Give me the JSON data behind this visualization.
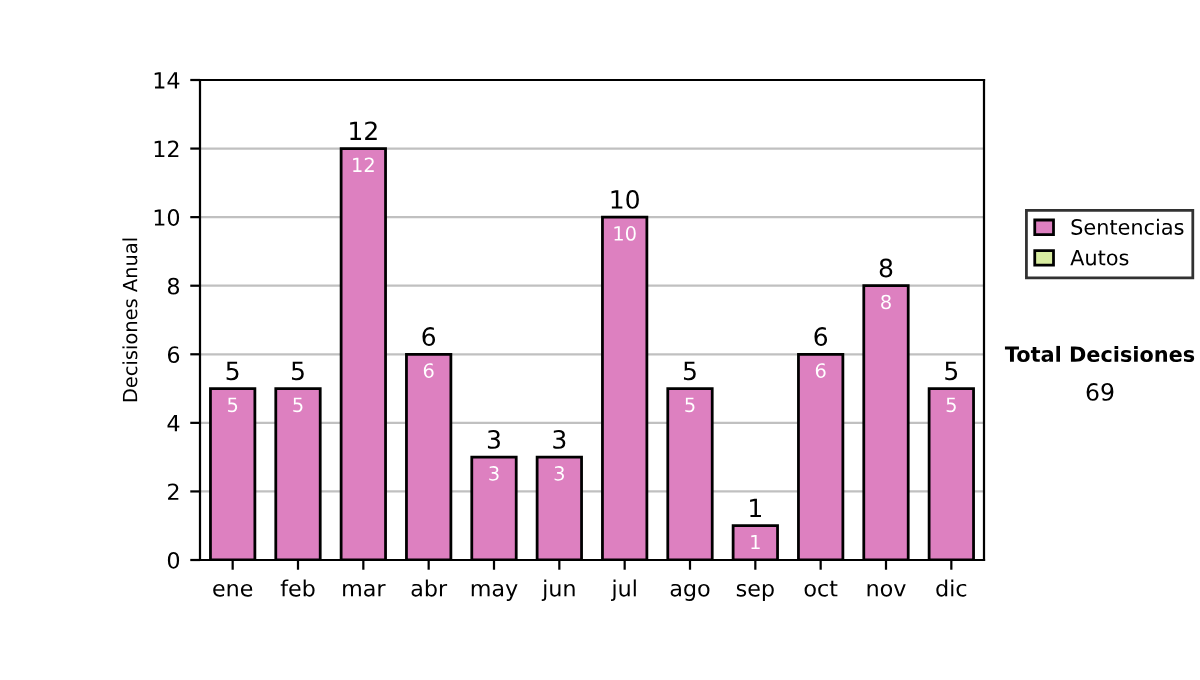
{
  "chart_data": {
    "type": "bar",
    "stacked": true,
    "ylabel": "Decisiones Anual",
    "categories": [
      "ene",
      "feb",
      "mar",
      "abr",
      "may",
      "jun",
      "jul",
      "ago",
      "sep",
      "oct",
      "nov",
      "dic"
    ],
    "series": [
      {
        "name": "Sentencias",
        "color": "#dd80c0",
        "values": [
          5,
          5,
          12,
          6,
          3,
          3,
          10,
          5,
          1,
          6,
          8,
          5
        ]
      },
      {
        "name": "Autos",
        "color": "#d8eca0",
        "values": [
          null,
          null,
          null,
          null,
          null,
          null,
          null,
          null,
          null,
          null,
          null,
          null
        ]
      }
    ],
    "data_labels": true,
    "totals": [
      "5",
      "5",
      "12",
      "6",
      "3",
      "3",
      "10",
      "5",
      "1",
      "6",
      "8",
      "5"
    ],
    "ylim": [
      0,
      14
    ],
    "yticks": [
      0,
      2,
      4,
      6,
      8,
      10,
      12,
      14
    ],
    "grid": "y",
    "legend": "right",
    "annotations": [
      "Total Decisiones",
      "69"
    ]
  }
}
